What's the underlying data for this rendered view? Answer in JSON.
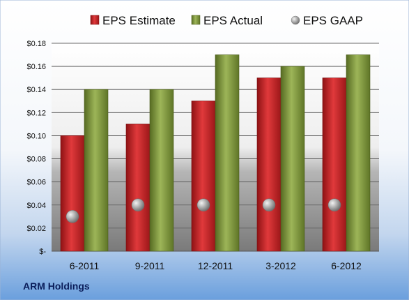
{
  "company": "ARM Holdings",
  "chart_data": {
    "type": "bar",
    "categories": [
      "6-2011",
      "9-2011",
      "12-2011",
      "3-2012",
      "6-2012"
    ],
    "series": [
      {
        "name": "EPS Estimate",
        "kind": "bar",
        "color": "#c8282a",
        "values": [
          0.1,
          0.11,
          0.13,
          0.15,
          0.15
        ]
      },
      {
        "name": "EPS Actual",
        "kind": "bar",
        "color": "#7f9a3a",
        "values": [
          0.14,
          0.14,
          0.17,
          0.16,
          0.17
        ]
      },
      {
        "name": "EPS GAAP",
        "kind": "marker",
        "color": "#9a9a9a",
        "values": [
          0.03,
          0.04,
          0.04,
          0.04,
          0.04
        ]
      }
    ],
    "yticks": [
      "$-",
      "$0.02",
      "$0.04",
      "$0.06",
      "$0.08",
      "$0.10",
      "$0.12",
      "$0.14",
      "$0.16",
      "$0.18"
    ],
    "ylim": [
      0,
      0.18
    ],
    "grid": true,
    "legend_position": "top"
  }
}
